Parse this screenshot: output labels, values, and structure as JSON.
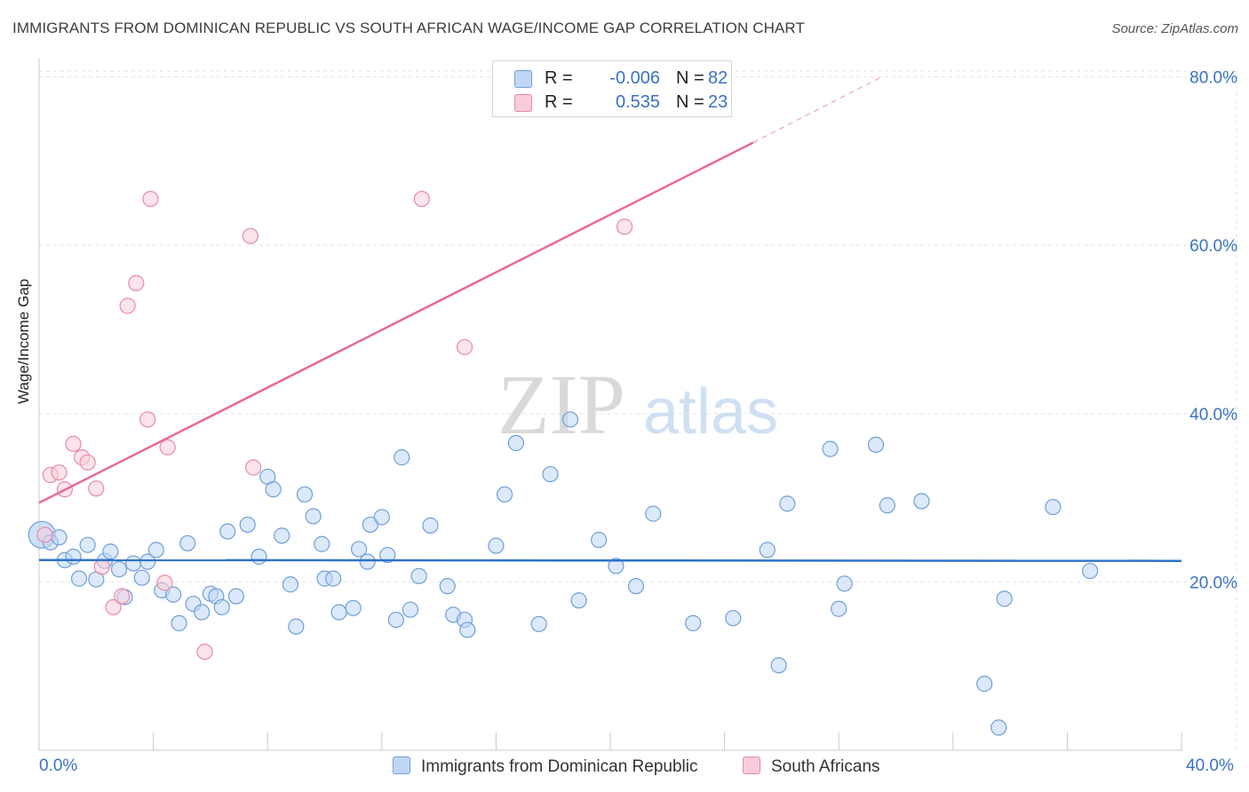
{
  "title": "IMMIGRANTS FROM DOMINICAN REPUBLIC VS SOUTH AFRICAN WAGE/INCOME GAP CORRELATION CHART",
  "source": "Source: ZipAtlas.com",
  "watermark": {
    "zip": "ZIP",
    "atlas": "atlas"
  },
  "legend_top": {
    "rows": [
      {
        "r_label": "R =",
        "r_value": "-0.006",
        "n_label": "N =",
        "n_value": "82"
      },
      {
        "r_label": "R =",
        "r_value": "0.535",
        "n_label": "N =",
        "n_value": "23"
      }
    ]
  },
  "legend_bottom": {
    "series1": "Immigrants from Dominican Republic",
    "series2": "South Africans"
  },
  "x_axis_labels": {
    "min": "0.0%",
    "max": "40.0%"
  },
  "colors": {
    "blue_fill": "#bfd7f5",
    "blue_stroke": "#6f9fd8",
    "blue_line": "#2f72c8",
    "pink_fill": "#f8cdd9",
    "pink_stroke": "#e88aa6",
    "pink_line": "#e86a93",
    "label_blue": "#3a72c4",
    "grid": "#e3e3e3"
  },
  "chart_data": {
    "type": "scatter",
    "title": "IMMIGRANTS FROM DOMINICAN REPUBLIC VS SOUTH AFRICAN WAGE/INCOME GAP CORRELATION CHART",
    "xlabel": "",
    "ylabel": "Wage/Income Gap",
    "xlim": [
      0,
      40
    ],
    "ylim": [
      0,
      80.7
    ],
    "y_ticks": [
      20,
      40,
      60,
      80
    ],
    "y_tick_labels": [
      "20.0%",
      "40.0%",
      "60.0%",
      "80.0%"
    ],
    "grid": true,
    "series": [
      {
        "name": "Immigrants from Dominican Republic",
        "R": -0.006,
        "N": 82,
        "trend": {
          "x0": 0,
          "y0": 22.6,
          "x1": 40,
          "y1": 22.5
        },
        "points": [
          [
            0.1,
            25.6
          ],
          [
            0.4,
            24.7
          ],
          [
            0.7,
            25.3
          ],
          [
            0.9,
            22.6
          ],
          [
            1.2,
            23.0
          ],
          [
            1.4,
            20.4
          ],
          [
            1.7,
            24.4
          ],
          [
            2.0,
            20.3
          ],
          [
            2.3,
            22.5
          ],
          [
            2.5,
            23.6
          ],
          [
            2.8,
            21.5
          ],
          [
            3.0,
            18.2
          ],
          [
            3.3,
            22.2
          ],
          [
            3.6,
            20.5
          ],
          [
            3.8,
            22.4
          ],
          [
            4.1,
            23.8
          ],
          [
            4.3,
            19.0
          ],
          [
            4.7,
            18.5
          ],
          [
            4.9,
            15.1
          ],
          [
            5.2,
            24.6
          ],
          [
            5.4,
            17.4
          ],
          [
            5.7,
            16.4
          ],
          [
            6.0,
            18.6
          ],
          [
            6.2,
            18.3
          ],
          [
            6.4,
            17.0
          ],
          [
            6.6,
            26.0
          ],
          [
            6.9,
            18.3
          ],
          [
            7.3,
            26.8
          ],
          [
            7.7,
            23.0
          ],
          [
            8.0,
            32.5
          ],
          [
            8.2,
            31.0
          ],
          [
            8.5,
            25.5
          ],
          [
            8.8,
            19.7
          ],
          [
            9.0,
            14.7
          ],
          [
            9.3,
            30.4
          ],
          [
            9.6,
            27.8
          ],
          [
            9.9,
            24.5
          ],
          [
            10.0,
            20.4
          ],
          [
            10.3,
            20.4
          ],
          [
            10.5,
            16.4
          ],
          [
            11.0,
            16.9
          ],
          [
            11.2,
            23.9
          ],
          [
            11.5,
            22.4
          ],
          [
            11.6,
            26.8
          ],
          [
            12.0,
            27.7
          ],
          [
            12.2,
            23.2
          ],
          [
            12.5,
            15.5
          ],
          [
            12.7,
            34.8
          ],
          [
            13.0,
            16.7
          ],
          [
            13.3,
            20.7
          ],
          [
            13.7,
            26.7
          ],
          [
            14.3,
            19.5
          ],
          [
            14.5,
            16.1
          ],
          [
            14.9,
            15.5
          ],
          [
            15.0,
            14.3
          ],
          [
            16.0,
            24.3
          ],
          [
            16.3,
            30.4
          ],
          [
            16.7,
            36.5
          ],
          [
            17.5,
            15.0
          ],
          [
            17.9,
            32.8
          ],
          [
            18.6,
            39.3
          ],
          [
            18.9,
            17.8
          ],
          [
            19.6,
            25.0
          ],
          [
            20.2,
            21.9
          ],
          [
            20.9,
            19.5
          ],
          [
            21.5,
            28.1
          ],
          [
            22.9,
            15.1
          ],
          [
            24.3,
            15.7
          ],
          [
            25.5,
            23.8
          ],
          [
            25.9,
            10.1
          ],
          [
            26.2,
            29.3
          ],
          [
            27.7,
            35.8
          ],
          [
            28.0,
            16.8
          ],
          [
            28.2,
            19.8
          ],
          [
            29.3,
            36.3
          ],
          [
            29.7,
            29.1
          ],
          [
            30.9,
            29.6
          ],
          [
            33.1,
            7.9
          ],
          [
            33.6,
            2.7
          ],
          [
            33.8,
            18.0
          ],
          [
            35.5,
            28.9
          ],
          [
            36.8,
            21.3
          ]
        ]
      },
      {
        "name": "South Africans",
        "R": 0.535,
        "N": 23,
        "trend": {
          "x0": 0,
          "y0": 29.4,
          "x1": 25,
          "y1": 72.2,
          "dash_to_x": 29.5,
          "dash_to_y": 80.0
        },
        "points": [
          [
            0.2,
            25.6
          ],
          [
            0.4,
            32.7
          ],
          [
            0.7,
            33.0
          ],
          [
            0.9,
            31.0
          ],
          [
            1.2,
            36.4
          ],
          [
            1.5,
            34.8
          ],
          [
            1.7,
            34.2
          ],
          [
            2.0,
            31.1
          ],
          [
            2.2,
            21.8
          ],
          [
            2.6,
            17.0
          ],
          [
            2.9,
            18.3
          ],
          [
            3.1,
            52.8
          ],
          [
            3.4,
            55.5
          ],
          [
            3.8,
            39.3
          ],
          [
            3.9,
            65.5
          ],
          [
            4.4,
            19.9
          ],
          [
            4.5,
            36.0
          ],
          [
            5.8,
            11.7
          ],
          [
            7.4,
            61.1
          ],
          [
            7.5,
            33.6
          ],
          [
            13.4,
            65.5
          ],
          [
            14.9,
            47.9
          ],
          [
            20.5,
            62.2
          ]
        ]
      }
    ]
  }
}
